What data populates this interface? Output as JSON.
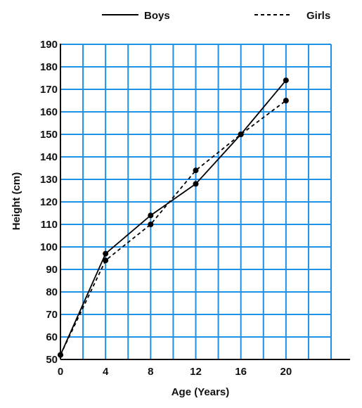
{
  "chart_data": {
    "type": "line",
    "title": "",
    "xlabel": "Age (Years)",
    "ylabel": "Height (cm)",
    "x_tick_labels": [
      "0",
      "4",
      "8",
      "12",
      "16",
      "20"
    ],
    "x_tick_values": [
      0,
      4,
      8,
      12,
      16,
      20
    ],
    "y_tick_labels": [
      "50",
      "60",
      "70",
      "80",
      "90",
      "100",
      "110",
      "120",
      "130",
      "140",
      "150",
      "160",
      "170",
      "180",
      "190"
    ],
    "y_tick_values": [
      50,
      60,
      70,
      80,
      90,
      100,
      110,
      120,
      130,
      140,
      150,
      160,
      170,
      180,
      190
    ],
    "xlim": [
      0,
      24
    ],
    "ylim": [
      50,
      190
    ],
    "grid": true,
    "grid_color": "#1e90e6",
    "legend_position": "top",
    "series": [
      {
        "name": "Boys",
        "line_style": "solid",
        "color": "#000000",
        "points": [
          {
            "x": 0,
            "y": 52
          },
          {
            "x": 4,
            "y": 97
          },
          {
            "x": 8,
            "y": 114
          },
          {
            "x": 12,
            "y": 128
          },
          {
            "x": 16,
            "y": 150
          },
          {
            "x": 20,
            "y": 174
          }
        ]
      },
      {
        "name": "Girls",
        "line_style": "dashed",
        "color": "#000000",
        "points": [
          {
            "x": 0,
            "y": 52
          },
          {
            "x": 4,
            "y": 94
          },
          {
            "x": 8,
            "y": 110
          },
          {
            "x": 12,
            "y": 134
          },
          {
            "x": 16,
            "y": 150
          },
          {
            "x": 20,
            "y": 165
          }
        ]
      }
    ]
  }
}
